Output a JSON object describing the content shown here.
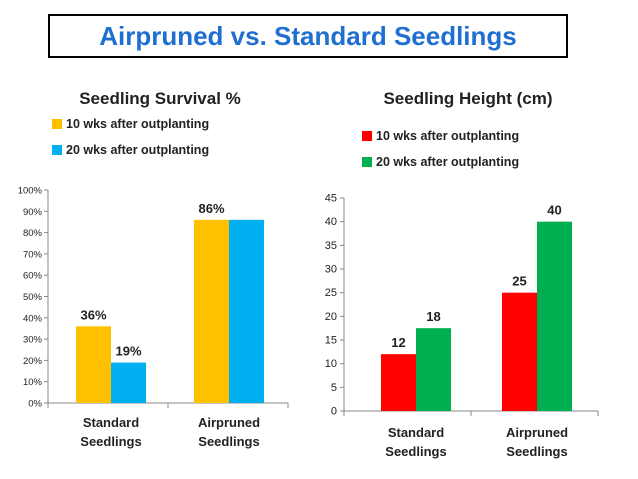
{
  "page": {
    "title": "Airpruned vs. Standard Seedlings"
  },
  "chart_data": [
    {
      "type": "bar",
      "title": "Seedling Survival %",
      "categories": [
        "Standard Seedlings",
        "Airpruned Seedlings"
      ],
      "category_lines": [
        [
          "Standard",
          "Seedlings"
        ],
        [
          "Airpruned",
          "Seedlings"
        ]
      ],
      "series": [
        {
          "name": "10 wks after outplanting",
          "color": "#ffc000",
          "values": [
            36,
            86
          ],
          "labels": [
            "36%",
            "86%"
          ]
        },
        {
          "name": "20 wks after outplanting",
          "color": "#00b0f0",
          "values": [
            19,
            86
          ],
          "labels": [
            "19%",
            ""
          ]
        }
      ],
      "ylim": [
        0,
        100
      ],
      "yticks": [
        0,
        10,
        20,
        30,
        40,
        50,
        60,
        70,
        80,
        90,
        100
      ],
      "ytick_labels": [
        "0%",
        "10%",
        "20%",
        "30%",
        "40%",
        "50%",
        "60%",
        "70%",
        "80%",
        "90%",
        "100%"
      ],
      "legend_position": "top-left",
      "grid": false
    },
    {
      "type": "bar",
      "title": "Seedling Height (cm)",
      "categories": [
        "Standard Seedlings",
        "Airpruned Seedlings"
      ],
      "category_lines": [
        [
          "Standard",
          "Seedlings"
        ],
        [
          "Airpruned",
          "Seedlings"
        ]
      ],
      "series": [
        {
          "name": "10 wks after outplanting",
          "color": "#ff0000",
          "values": [
            12,
            25
          ],
          "labels": [
            "12",
            "25"
          ]
        },
        {
          "name": "20 wks after outplanting",
          "color": "#00b050",
          "values": [
            17.5,
            40
          ],
          "labels": [
            "18",
            "40"
          ]
        }
      ],
      "ylim": [
        0,
        45
      ],
      "yticks": [
        0,
        5,
        10,
        15,
        20,
        25,
        30,
        35,
        40,
        45
      ],
      "ytick_labels": [
        "0",
        "5",
        "10",
        "15",
        "20",
        "25",
        "30",
        "35",
        "40",
        "45"
      ],
      "legend_position": "top-left",
      "grid": false
    }
  ]
}
